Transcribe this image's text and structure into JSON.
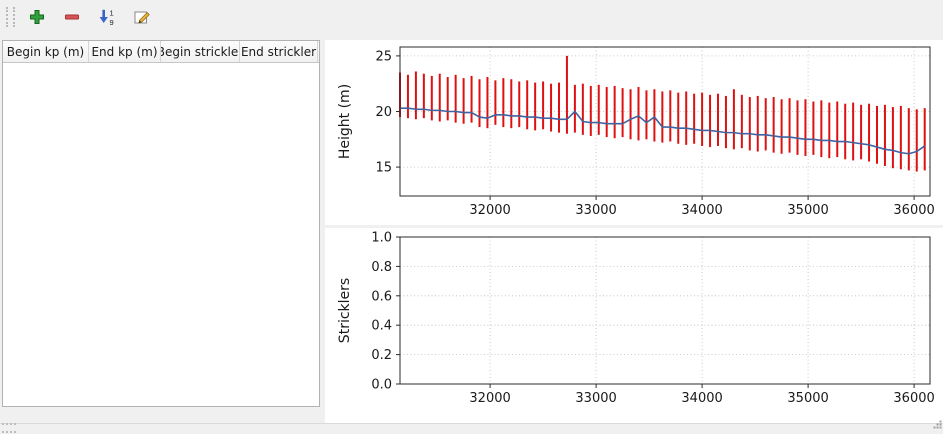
{
  "window": {
    "background": "#f0f0f0"
  },
  "toolbar": {
    "buttons": [
      {
        "label": "add-row",
        "icon": "plus-icon"
      },
      {
        "label": "remove-row",
        "icon": "minus-icon"
      },
      {
        "label": "sort-numeric",
        "icon": "sort-numeric-icon",
        "digits": [
          "1",
          "9"
        ]
      },
      {
        "label": "edit-table",
        "icon": "edit-icon"
      }
    ]
  },
  "table": {
    "columns": [
      {
        "label": "Begin kp (m)"
      },
      {
        "label": "End kp (m)"
      },
      {
        "label": "Begin strickler"
      },
      {
        "label": "End strickler"
      }
    ],
    "rows": []
  },
  "colors": {
    "bars": "#dd1111",
    "line": "#3f62a0",
    "grid": "#bbbbbb",
    "axis": "#2b2b2b"
  },
  "chart_data": [
    {
      "type": "rangebar+line",
      "title": "",
      "xlabel": "",
      "ylabel": "Height (m)",
      "grid": true,
      "legend": "none",
      "xlim": [
        31150,
        36150
      ],
      "ylim": [
        12.4,
        25.8
      ],
      "xticks": [
        32000,
        33000,
        34000,
        35000,
        36000
      ],
      "xtick_labels": [
        "32000",
        "33000",
        "34000",
        "35000",
        "36000"
      ],
      "yticks": [
        15,
        20,
        25
      ],
      "ytick_labels": [
        "15",
        "20",
        "25"
      ],
      "bar_color": "#dd1111",
      "line_color": "#3f62a0",
      "x": [
        31150,
        31225,
        31300,
        31375,
        31450,
        31525,
        31600,
        31675,
        31750,
        31825,
        31900,
        31975,
        32050,
        32125,
        32200,
        32275,
        32350,
        32425,
        32500,
        32575,
        32650,
        32725,
        32800,
        32875,
        32950,
        33025,
        33100,
        33175,
        33250,
        33325,
        33400,
        33475,
        33550,
        33625,
        33700,
        33775,
        33850,
        33925,
        34000,
        34075,
        34150,
        34225,
        34300,
        34375,
        34450,
        34525,
        34600,
        34675,
        34750,
        34825,
        34900,
        34975,
        35050,
        35125,
        35200,
        35275,
        35350,
        35425,
        35500,
        35575,
        35650,
        35725,
        35800,
        35875,
        35950,
        36025,
        36100
      ],
      "bar_top": [
        23.5,
        23.3,
        23.6,
        23.4,
        23.2,
        23.4,
        23.1,
        23.3,
        23.0,
        23.2,
        22.9,
        23.1,
        22.8,
        23.0,
        22.9,
        22.7,
        22.8,
        22.6,
        22.7,
        22.5,
        22.6,
        25.0,
        22.4,
        22.5,
        22.3,
        22.4,
        22.2,
        22.3,
        22.1,
        22.0,
        22.2,
        21.9,
        22.0,
        21.8,
        21.9,
        21.7,
        21.8,
        21.6,
        21.7,
        21.5,
        21.6,
        21.4,
        22.0,
        21.5,
        21.3,
        21.4,
        21.2,
        21.3,
        21.1,
        21.2,
        21.0,
        21.1,
        20.9,
        21.0,
        20.8,
        20.9,
        20.7,
        20.8,
        20.6,
        20.7,
        20.5,
        20.6,
        20.4,
        20.5,
        20.3,
        20.2,
        20.3
      ],
      "bar_bottom": [
        19.5,
        19.4,
        19.3,
        19.4,
        19.2,
        19.1,
        19.2,
        19.0,
        18.9,
        19.0,
        18.6,
        18.5,
        18.8,
        18.6,
        18.5,
        18.6,
        18.4,
        18.3,
        18.4,
        18.2,
        18.1,
        18.0,
        18.1,
        17.9,
        17.8,
        17.9,
        17.7,
        17.6,
        17.7,
        17.5,
        17.4,
        17.5,
        17.3,
        17.2,
        17.3,
        17.1,
        17.0,
        17.1,
        16.9,
        16.8,
        16.9,
        16.7,
        16.6,
        16.7,
        16.5,
        16.4,
        16.5,
        16.3,
        16.2,
        16.3,
        16.1,
        16.0,
        16.1,
        15.9,
        15.8,
        15.9,
        15.7,
        15.6,
        15.7,
        15.5,
        15.3,
        15.1,
        14.9,
        14.8,
        14.7,
        14.6,
        14.7
      ],
      "line": [
        20.3,
        20.3,
        20.2,
        20.2,
        20.1,
        20.1,
        20.0,
        20.0,
        19.9,
        19.9,
        19.5,
        19.4,
        19.7,
        19.7,
        19.6,
        19.6,
        19.5,
        19.5,
        19.4,
        19.4,
        19.3,
        19.3,
        20.0,
        19.1,
        19.0,
        19.0,
        18.9,
        18.9,
        18.9,
        19.3,
        19.6,
        19.0,
        19.5,
        18.6,
        18.6,
        18.5,
        18.5,
        18.4,
        18.3,
        18.3,
        18.2,
        18.1,
        18.1,
        18.0,
        18.0,
        17.9,
        17.9,
        17.8,
        17.7,
        17.7,
        17.6,
        17.5,
        17.5,
        17.4,
        17.4,
        17.3,
        17.3,
        17.2,
        17.1,
        17.0,
        16.8,
        16.6,
        16.5,
        16.3,
        16.2,
        16.4,
        16.9
      ]
    },
    {
      "type": "empty",
      "title": "",
      "xlabel": "",
      "ylabel": "Stricklers",
      "grid": true,
      "legend": "none",
      "xlim": [
        31150,
        36150
      ],
      "ylim": [
        0,
        1
      ],
      "xticks": [
        32000,
        33000,
        34000,
        35000,
        36000
      ],
      "xtick_labels": [
        "32000",
        "33000",
        "34000",
        "35000",
        "36000"
      ],
      "yticks": [
        0,
        0.2,
        0.4,
        0.6,
        0.8,
        1
      ],
      "ytick_labels": [
        "0.0",
        "0.2",
        "0.4",
        "0.6",
        "0.8",
        "1.0"
      ],
      "x": []
    }
  ]
}
